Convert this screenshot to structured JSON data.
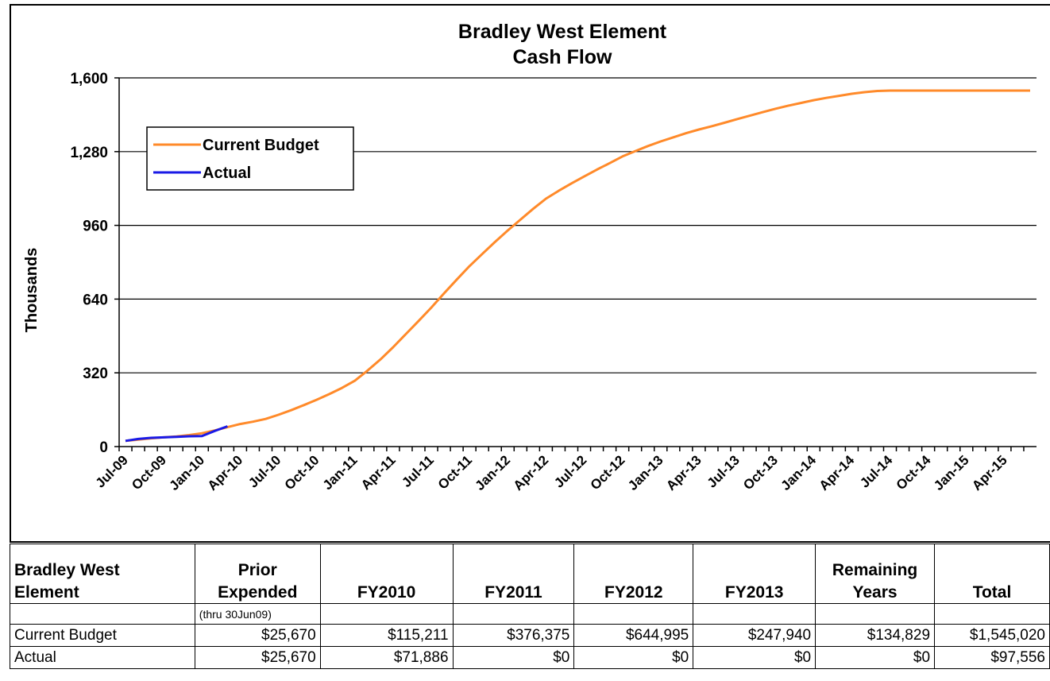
{
  "chart_data": {
    "type": "line",
    "title": "Bradley West Element",
    "subtitle": "Cash Flow",
    "y_label": "Thousands",
    "categories": [
      "Jul-09",
      null,
      null,
      "Oct-09",
      null,
      null,
      "Jan-10",
      null,
      null,
      "Apr-10",
      null,
      null,
      "Jul-10",
      null,
      null,
      "Oct-10",
      null,
      null,
      "Jan-11",
      null,
      null,
      "Apr-11",
      null,
      null,
      "Jul-11",
      null,
      null,
      "Oct-11",
      null,
      null,
      "Jan-12",
      null,
      null,
      "Apr-12",
      null,
      null,
      "Jul-12",
      null,
      null,
      "Oct-12",
      null,
      null,
      "Jan-13",
      null,
      null,
      "Apr-13",
      null,
      null,
      "Jul-13",
      null,
      null,
      "Oct-13",
      null,
      null,
      "Jan-14",
      null,
      null,
      "Apr-14",
      null,
      null,
      "Jul-14",
      null,
      null,
      "Oct-14",
      null,
      null,
      "Jan-15",
      null,
      null,
      "Apr-15",
      null,
      null
    ],
    "series": [
      {
        "name": "Current Budget",
        "color": "#ff8a2a",
        "values": [
          25,
          30,
          36,
          40,
          44,
          50,
          58,
          70,
          84,
          98,
          108,
          120,
          138,
          158,
          180,
          203,
          228,
          255,
          286,
          330,
          378,
          431,
          488,
          545,
          603,
          665,
          725,
          783,
          836,
          888,
          938,
          985,
          1032,
          1076,
          1110,
          1142,
          1172,
          1202,
          1230,
          1259,
          1282,
          1304,
          1324,
          1342,
          1360,
          1376,
          1390,
          1405,
          1421,
          1436,
          1451,
          1466,
          1479,
          1491,
          1503,
          1513,
          1522,
          1531,
          1538,
          1543,
          1545,
          1545,
          1545,
          1545,
          1545,
          1545,
          1545,
          1545,
          1545,
          1545,
          1545,
          1545
        ]
      },
      {
        "name": "Actual",
        "color": "#1a1ae6",
        "values": [
          25,
          33,
          38,
          40,
          42,
          45,
          46,
          68,
          88,
          null,
          null,
          null,
          null,
          null,
          null,
          null,
          null,
          null,
          null,
          null,
          null,
          null,
          null,
          null,
          null,
          null,
          null,
          null,
          null,
          null,
          null,
          null,
          null,
          null,
          null,
          null,
          null,
          null,
          null,
          null,
          null,
          null,
          null,
          null,
          null,
          null,
          null,
          null,
          null,
          null,
          null,
          null,
          null,
          null,
          null,
          null,
          null,
          null,
          null,
          null,
          null,
          null,
          null,
          null,
          null,
          null,
          null,
          null,
          null,
          null,
          null,
          null
        ]
      }
    ],
    "ylim": [
      0,
      1600
    ],
    "yticks": [
      0,
      320,
      640,
      960,
      {
        "value": 1280,
        "label": "1,280"
      },
      {
        "value": 1600,
        "label": "1,600"
      }
    ],
    "grid": true,
    "legend": "upper left"
  },
  "table": {
    "header": [
      "Bradley West\nElement",
      "Prior\nExpended",
      "FY2010",
      "FY2011",
      "FY2012",
      "FY2013",
      "Remaining\nYears",
      "Total"
    ],
    "note": "(thru 30Jun09)",
    "rows": [
      [
        "Current Budget",
        "$25,670",
        "$115,211",
        "$376,375",
        "$644,995",
        "$247,940",
        "$134,829",
        "$1,545,020"
      ],
      [
        "Actual",
        "$25,670",
        "$71,886",
        "$0",
        "$0",
        "$0",
        "$0",
        "$97,556"
      ]
    ]
  }
}
